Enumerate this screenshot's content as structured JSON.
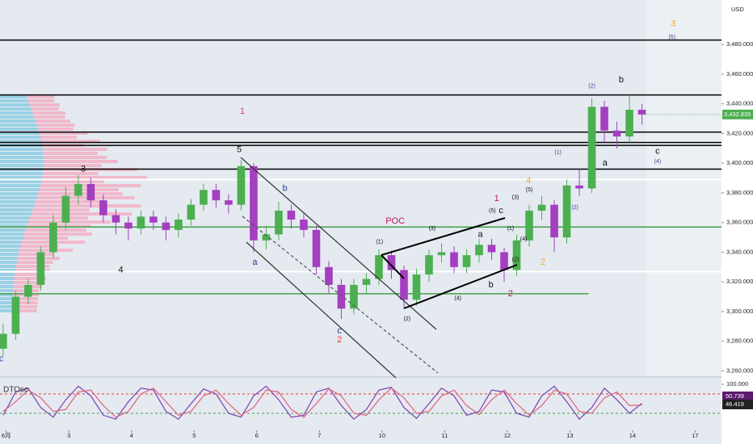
{
  "chart_data": [
    {
      "type": "candlestick",
      "currency": "USD",
      "x": [
        -0.05,
        0.15,
        0.35,
        0.55,
        0.75,
        0.95,
        1.15,
        1.35,
        1.55,
        1.75,
        1.95,
        2.15,
        2.35,
        2.55,
        2.75,
        2.95,
        3.15,
        3.35,
        3.55,
        3.75,
        3.95,
        4.15,
        4.35,
        4.55,
        4.75,
        4.95,
        5.15,
        5.35,
        5.55,
        5.75,
        5.95,
        6.15,
        6.35,
        6.55,
        6.75,
        6.95,
        7.15,
        7.35,
        7.55,
        7.75,
        7.95,
        8.15,
        8.35,
        8.55,
        8.75,
        8.95,
        9.15,
        9.35,
        9.55,
        9.75,
        9.95,
        10.15
      ],
      "open": [
        3275,
        3285,
        3310,
        3318,
        3340,
        3360,
        3378,
        3386,
        3375,
        3365,
        3360,
        3356,
        3364,
        3360,
        3355,
        3362,
        3372,
        3382,
        3375,
        3372,
        3398,
        3348,
        3352,
        3368,
        3362,
        3355,
        3330,
        3318,
        3302,
        3318,
        3322,
        3338,
        3328,
        3308,
        3325,
        3338,
        3340,
        3330,
        3338,
        3345,
        3340,
        3328,
        3348,
        3368,
        3372,
        3350,
        3385,
        3383,
        3438,
        3422,
        3418,
        3436
      ],
      "high": [
        3292,
        3314,
        3322,
        3344,
        3365,
        3384,
        3392,
        3390,
        3379,
        3369,
        3364,
        3368,
        3368,
        3364,
        3366,
        3376,
        3386,
        3386,
        3379,
        3402,
        3400,
        3358,
        3374,
        3372,
        3366,
        3358,
        3334,
        3322,
        3322,
        3326,
        3342,
        3341,
        3331,
        3329,
        3342,
        3346,
        3344,
        3342,
        3349,
        3349,
        3343,
        3352,
        3372,
        3378,
        3375,
        3389,
        3396,
        3444,
        3442,
        3428,
        3446,
        3440
      ],
      "low": [
        3270,
        3281,
        3305,
        3314,
        3336,
        3355,
        3372,
        3370,
        3360,
        3352,
        3348,
        3352,
        3355,
        3348,
        3350,
        3358,
        3368,
        3370,
        3366,
        3368,
        3340,
        3342,
        3348,
        3356,
        3350,
        3325,
        3312,
        3295,
        3298,
        3312,
        3318,
        3322,
        3302,
        3304,
        3320,
        3333,
        3326,
        3326,
        3333,
        3335,
        3320,
        3324,
        3344,
        3362,
        3340,
        3346,
        3378,
        3380,
        3414,
        3410,
        3414,
        3426
      ],
      "close": [
        3285,
        3310,
        3318,
        3340,
        3360,
        3378,
        3386,
        3375,
        3365,
        3360,
        3356,
        3364,
        3360,
        3355,
        3362,
        3372,
        3382,
        3375,
        3372,
        3398,
        3348,
        3352,
        3368,
        3362,
        3355,
        3330,
        3318,
        3302,
        3318,
        3322,
        3338,
        3328,
        3308,
        3325,
        3338,
        3340,
        3330,
        3338,
        3345,
        3340,
        3328,
        3348,
        3368,
        3372,
        3350,
        3385,
        3383,
        3438,
        3422,
        3418,
        3436,
        3432.835
      ],
      "close_label": "3,432.835",
      "up_color": "#4caf50",
      "down_color": "#a43fc0",
      "xlim": [
        -0.1,
        11.42
      ],
      "ylim": [
        3257,
        3510
      ],
      "xticks": [
        {
          "value": 0,
          "label": "6月"
        },
        {
          "value": 1,
          "label": "3"
        },
        {
          "value": 2,
          "label": "4"
        },
        {
          "value": 3,
          "label": "5"
        },
        {
          "value": 4,
          "label": "6"
        },
        {
          "value": 5,
          "label": "7"
        },
        {
          "value": 6,
          "label": "10"
        },
        {
          "value": 7,
          "label": "11"
        },
        {
          "value": 8,
          "label": "12"
        },
        {
          "value": 9,
          "label": "13"
        },
        {
          "value": 10,
          "label": "14"
        },
        {
          "value": 11,
          "label": "17"
        }
      ],
      "yticks": [
        {
          "value": 3480,
          "label": "3,480.000"
        },
        {
          "value": 3460,
          "label": "3,460.000"
        },
        {
          "value": 3440,
          "label": "3,440.000"
        },
        {
          "value": 3420,
          "label": "3,420.000"
        },
        {
          "value": 3400,
          "label": "3,400.000"
        },
        {
          "value": 3380,
          "label": "3,380.000"
        },
        {
          "value": 3360,
          "label": "3,360.000"
        },
        {
          "value": 3340,
          "label": "3,340.000"
        },
        {
          "value": 3320,
          "label": "3,320.000"
        },
        {
          "value": 3300,
          "label": "3,300.000"
        },
        {
          "value": 3280,
          "label": "3,280.000"
        },
        {
          "value": 3260,
          "label": "3,260.000"
        }
      ],
      "levels": [
        {
          "price": 3483,
          "color": "#000000"
        },
        {
          "price": 3446,
          "color": "#000000"
        },
        {
          "price": 3421,
          "color": "#000000"
        },
        {
          "price": 3414,
          "color": "#000000"
        },
        {
          "price": 3412,
          "color": "#000000"
        },
        {
          "price": 3396,
          "color": "#000000"
        },
        {
          "price": 3389,
          "color": "#ffffff"
        },
        {
          "price": 3327,
          "color": "#ffffff"
        },
        {
          "price": 3357,
          "color": "#43a047"
        },
        {
          "price": 3312,
          "color": "#43a047",
          "x_end": 9.3
        }
      ],
      "annotations": [
        {
          "text": "3",
          "x": 10.65,
          "y": 3494,
          "color": "#f5a623"
        },
        {
          "text": "(5)",
          "x": 10.63,
          "y": 3485,
          "color": "#3f3fa0"
        },
        {
          "text": "(2)",
          "x": 9.35,
          "y": 3452,
          "color": "#3f3fa0"
        },
        {
          "text": "b",
          "x": 9.82,
          "y": 3456,
          "color": "#111111"
        },
        {
          "text": "1",
          "x": 3.77,
          "y": 3435,
          "color": "#d0426a"
        },
        {
          "text": "5",
          "x": 3.72,
          "y": 3409,
          "color": "#111111"
        },
        {
          "text": "3",
          "x": 1.23,
          "y": 3396,
          "color": "#111111"
        },
        {
          "text": "c",
          "x": 10.4,
          "y": 3408,
          "color": "#111111"
        },
        {
          "text": "(4)",
          "x": 10.4,
          "y": 3401,
          "color": "#3f3fa0"
        },
        {
          "text": "a",
          "x": 9.56,
          "y": 3400,
          "color": "#111111"
        },
        {
          "text": "(1)",
          "x": 8.81,
          "y": 3407,
          "color": "#3f3fa0"
        },
        {
          "text": "4",
          "x": 8.34,
          "y": 3388,
          "color": "#f5a623"
        },
        {
          "text": "(5)",
          "x": 8.35,
          "y": 3382,
          "color": "#111111"
        },
        {
          "text": "b",
          "x": 4.45,
          "y": 3383,
          "color": "#2a3a8c"
        },
        {
          "text": "(2)",
          "x": 9.08,
          "y": 3370,
          "color": "#3f3fa0"
        },
        {
          "text": "1",
          "x": 7.83,
          "y": 3376,
          "color": "#c2185b"
        },
        {
          "text": "(5)",
          "x": 7.76,
          "y": 3368,
          "color": "#111111"
        },
        {
          "text": "c",
          "x": 7.9,
          "y": 3368,
          "color": "#111111"
        },
        {
          "text": "(3)",
          "x": 8.13,
          "y": 3377,
          "color": "#111111"
        },
        {
          "text": "POC",
          "x": 6.21,
          "y": 3361,
          "color": "#c2185b"
        },
        {
          "text": "(3)",
          "x": 6.8,
          "y": 3356,
          "color": "#111111"
        },
        {
          "text": "a",
          "x": 7.57,
          "y": 3352,
          "color": "#111111"
        },
        {
          "text": "(1)",
          "x": 8.05,
          "y": 3356,
          "color": "#111111"
        },
        {
          "text": "(4)",
          "x": 8.26,
          "y": 3349,
          "color": "#111111"
        },
        {
          "text": "(1)",
          "x": 5.96,
          "y": 3347,
          "color": "#111111"
        },
        {
          "text": "a",
          "x": 3.97,
          "y": 3333,
          "color": "#2a3a8c"
        },
        {
          "text": "2",
          "x": 8.57,
          "y": 3333,
          "color": "#f5a623"
        },
        {
          "text": "(2)",
          "x": 8.13,
          "y": 3335,
          "color": "#111111"
        },
        {
          "text": "4",
          "x": 1.83,
          "y": 3328,
          "color": "#111111"
        },
        {
          "text": "b",
          "x": 7.74,
          "y": 3318,
          "color": "#111111"
        },
        {
          "text": "2",
          "x": 8.05,
          "y": 3312,
          "color": "#c2185b"
        },
        {
          "text": "(4)",
          "x": 7.21,
          "y": 3309,
          "color": "#111111"
        },
        {
          "text": "(2)",
          "x": 6.4,
          "y": 3295,
          "color": "#111111"
        },
        {
          "text": "c",
          "x": 5.32,
          "y": 3287,
          "color": "#2a3a8c"
        },
        {
          "text": "2",
          "x": 5.32,
          "y": 3281,
          "color": "#e53935"
        },
        {
          "text": "c",
          "x": -0.08,
          "y": 3268,
          "color": "#3f3fa0"
        }
      ]
    },
    {
      "type": "line",
      "title": "DTOsc",
      "x": [
        -0.05,
        0.15,
        0.35,
        0.55,
        0.75,
        0.95,
        1.15,
        1.35,
        1.55,
        1.75,
        1.95,
        2.15,
        2.35,
        2.55,
        2.75,
        2.95,
        3.15,
        3.35,
        3.55,
        3.75,
        3.95,
        4.15,
        4.35,
        4.55,
        4.75,
        4.95,
        5.15,
        5.35,
        5.55,
        5.75,
        5.95,
        6.15,
        6.35,
        6.55,
        6.75,
        6.95,
        7.15,
        7.35,
        7.55,
        7.75,
        7.95,
        8.15,
        8.35,
        8.55,
        8.75,
        8.95,
        9.15,
        9.35,
        9.55,
        9.75,
        9.95,
        10.15
      ],
      "series": [
        {
          "color": "#7b3fb0",
          "values": [
            20,
            80,
            90,
            40,
            15,
            60,
            95,
            70,
            20,
            10,
            55,
            90,
            85,
            30,
            10,
            50,
            88,
            75,
            25,
            15,
            70,
            95,
            60,
            15,
            20,
            80,
            90,
            45,
            10,
            35,
            85,
            92,
            40,
            12,
            50,
            90,
            70,
            20,
            30,
            85,
            80,
            25,
            15,
            70,
            95,
            55,
            10,
            40,
            90,
            60,
            25,
            50.739
          ]
        },
        {
          "color": "#e0607e",
          "values": [
            30,
            55,
            85,
            65,
            30,
            35,
            80,
            85,
            45,
            15,
            30,
            75,
            90,
            55,
            20,
            30,
            70,
            85,
            50,
            20,
            40,
            85,
            80,
            35,
            15,
            50,
            88,
            70,
            25,
            20,
            60,
            90,
            65,
            25,
            30,
            70,
            85,
            45,
            22,
            60,
            85,
            50,
            20,
            45,
            85,
            75,
            30,
            25,
            65,
            80,
            45,
            46.419
          ]
        }
      ],
      "xlim": [
        -0.1,
        11.42
      ],
      "ylim": [
        0,
        100
      ],
      "yticks": [
        {
          "value": 100,
          "label": "100.000"
        }
      ],
      "levels": [
        {
          "value": 75,
          "color": "#e53935"
        },
        {
          "value": 25,
          "color": "#43a047"
        }
      ]
    }
  ]
}
